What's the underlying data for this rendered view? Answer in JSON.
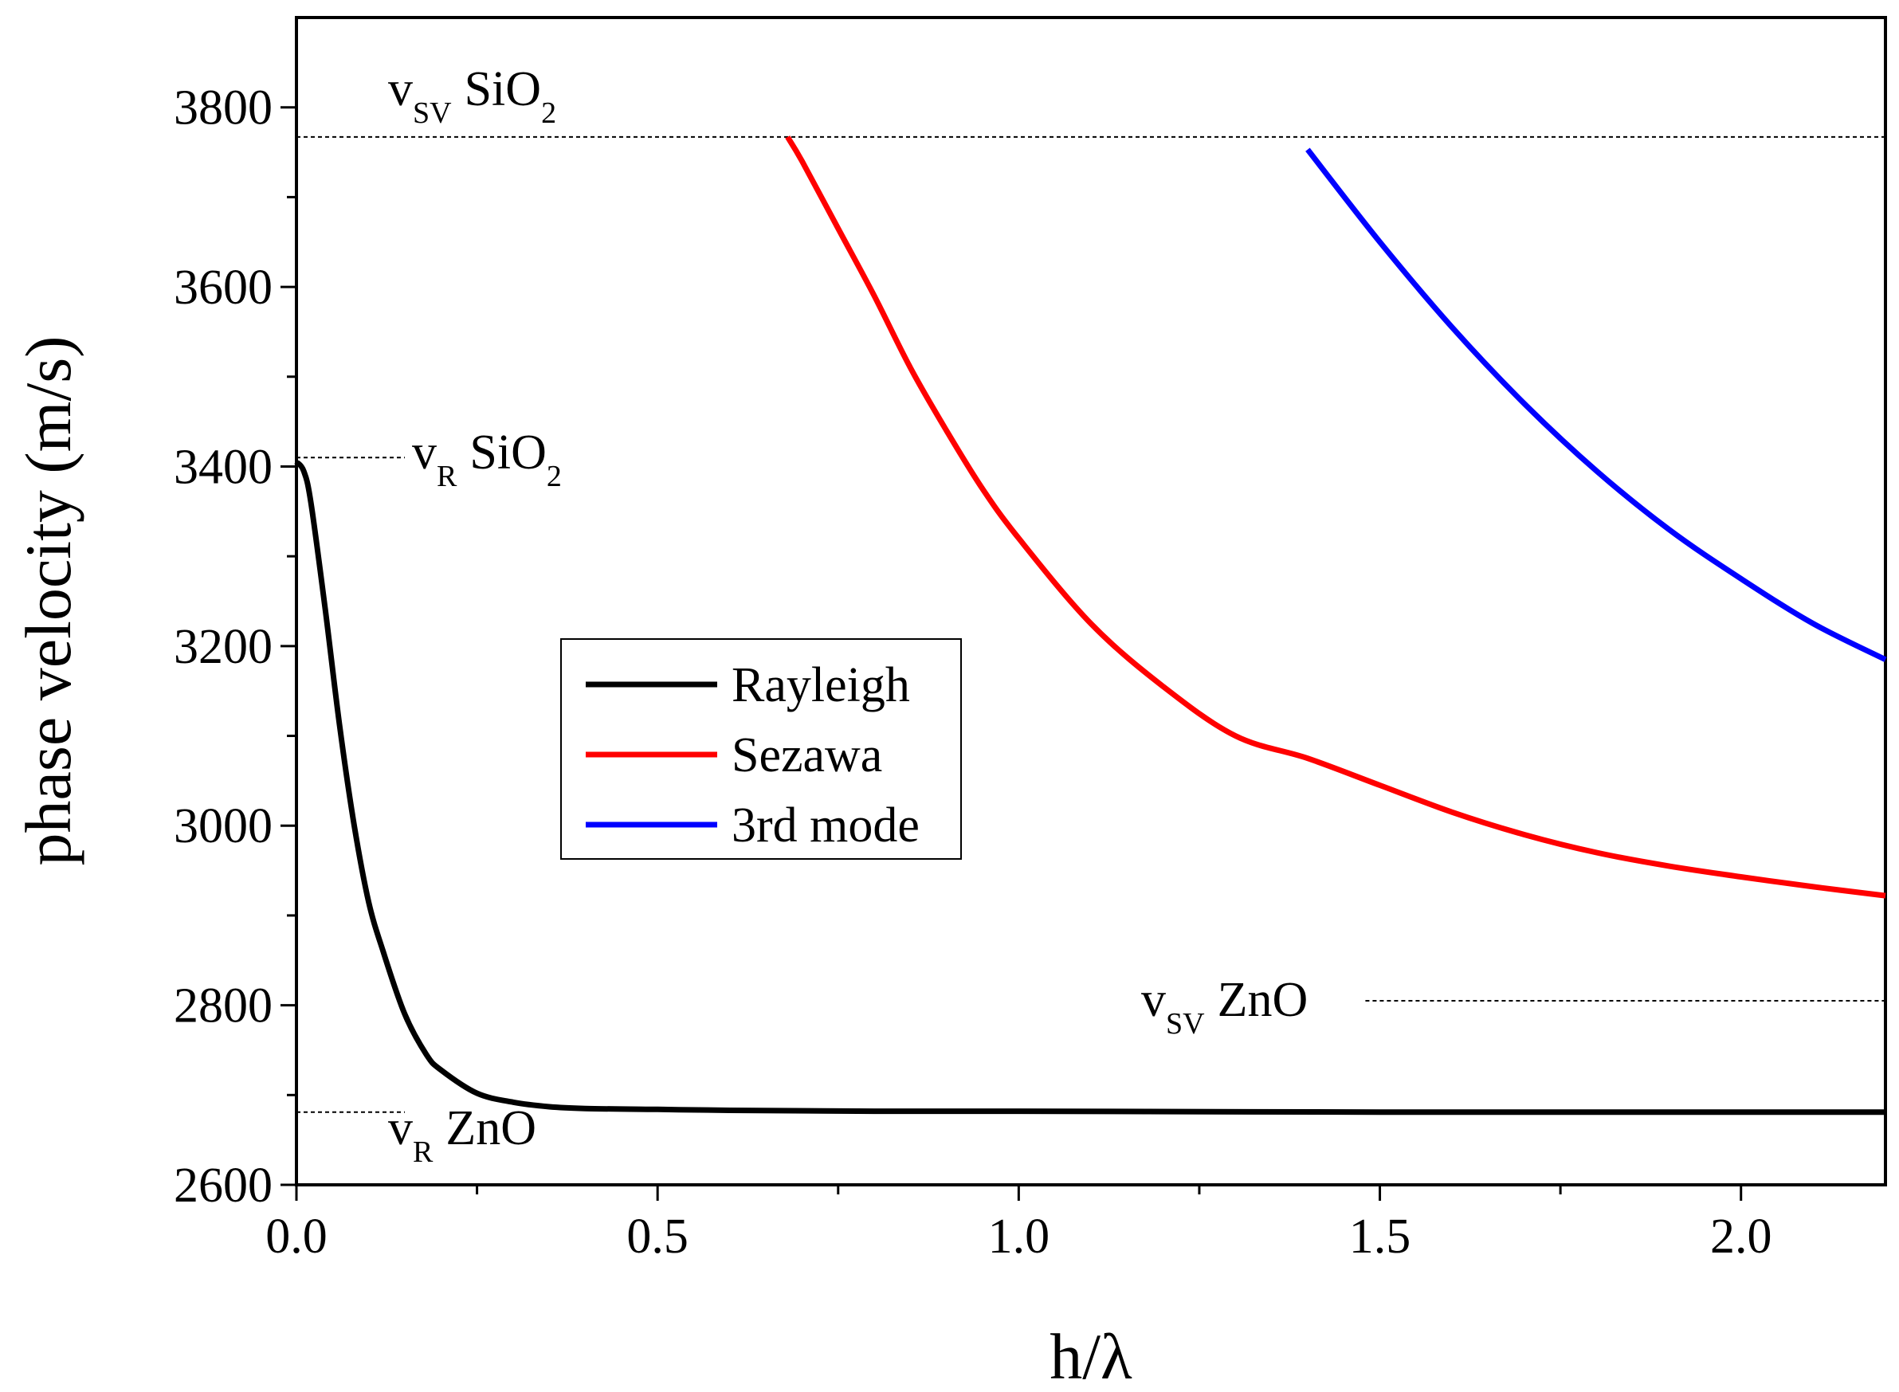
{
  "chart_data": {
    "type": "line",
    "xlabel": "h/λ",
    "ylabel": "phase velocity   (m/s)",
    "xlim": [
      0.0,
      2.2
    ],
    "ylim": [
      2600,
      3900
    ],
    "x_ticks": [
      0.0,
      0.5,
      1.0,
      1.5,
      2.0
    ],
    "x_tick_labels": [
      "0.0",
      "0.5",
      "1.0",
      "1.5",
      "2.0"
    ],
    "y_ticks": [
      2600,
      2800,
      3000,
      3200,
      3400,
      3600,
      3800
    ],
    "y_tick_labels": [
      "2600",
      "2800",
      "3000",
      "3200",
      "3400",
      "3600",
      "3800"
    ],
    "grid": false,
    "legend_position": "center-left",
    "series": [
      {
        "name": "Rayleigh",
        "color": "#000000",
        "x": [
          0.0,
          0.01,
          0.02,
          0.04,
          0.06,
          0.08,
          0.1,
          0.12,
          0.15,
          0.18,
          0.2,
          0.25,
          0.3,
          0.35,
          0.4,
          0.5,
          0.6,
          0.8,
          1.0,
          1.5,
          2.0,
          2.2
        ],
        "y": [
          3405,
          3395,
          3360,
          3240,
          3110,
          3000,
          2915,
          2860,
          2790,
          2745,
          2728,
          2702,
          2692,
          2687,
          2685,
          2684,
          2683,
          2682,
          2682,
          2681,
          2681,
          2681
        ]
      },
      {
        "name": "Sezawa",
        "color": "#ff0000",
        "x": [
          0.68,
          0.7,
          0.75,
          0.8,
          0.85,
          0.9,
          0.95,
          1.0,
          1.1,
          1.2,
          1.3,
          1.4,
          1.5,
          1.6,
          1.7,
          1.8,
          1.9,
          2.0,
          2.1,
          2.2
        ],
        "y": [
          3767,
          3740,
          3665,
          3590,
          3510,
          3440,
          3375,
          3320,
          3225,
          3155,
          3100,
          3075,
          3045,
          3015,
          2990,
          2970,
          2955,
          2943,
          2932,
          2922
        ]
      },
      {
        "name": "3rd mode",
        "color": "#0000ff",
        "x": [
          1.4,
          1.5,
          1.6,
          1.7,
          1.8,
          1.9,
          2.0,
          2.1,
          2.2
        ],
        "y": [
          3753,
          3650,
          3555,
          3470,
          3395,
          3330,
          3275,
          3225,
          3185
        ]
      }
    ],
    "reference_lines": [
      {
        "name": "v_SV SiO2",
        "y": 3767,
        "x_start": 0.0,
        "x_end": 2.2,
        "base": "v",
        "sub": "SV",
        "material": "SiO",
        "material_sub": "2"
      },
      {
        "name": "v_R SiO2",
        "y": 3410,
        "x_start": 0.0,
        "x_end": 0.15,
        "base": "v",
        "sub": "R",
        "material": "SiO",
        "material_sub": "2"
      },
      {
        "name": "v_SV ZnO",
        "y": 2805,
        "x_start": 1.48,
        "x_end": 2.2,
        "base": "v",
        "sub": "SV",
        "material": "ZnO",
        "material_sub": ""
      },
      {
        "name": "v_R ZnO",
        "y": 2681,
        "x_start": 0.0,
        "x_end": 0.15,
        "base": "v",
        "sub": "R",
        "material": "ZnO",
        "material_sub": ""
      }
    ]
  }
}
